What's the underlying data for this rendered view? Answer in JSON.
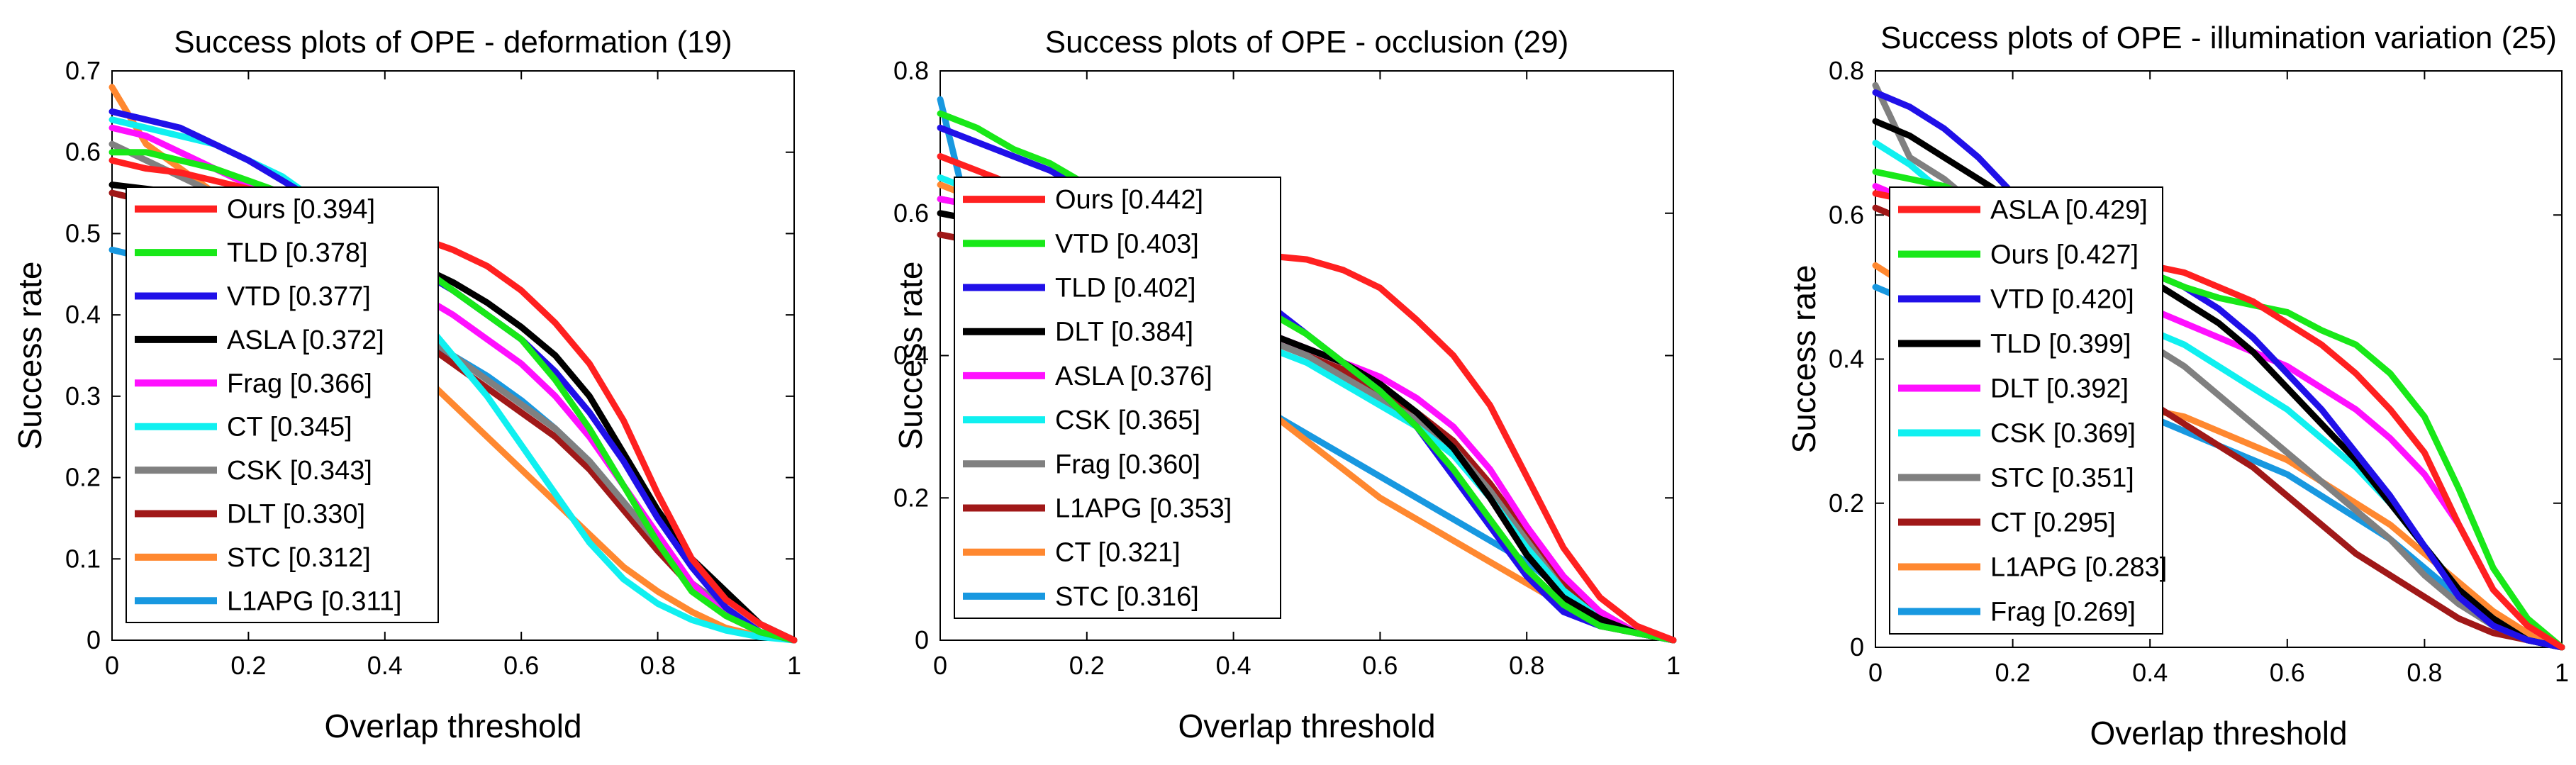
{
  "chart_data": [
    {
      "type": "line",
      "title": "Success plots of OPE - deformation (19)",
      "xlabel": "Overlap threshold",
      "ylabel": "Success rate",
      "xlim": [
        0,
        1
      ],
      "ylim": [
        0,
        0.7
      ],
      "xticks": [
        0,
        0.2,
        0.4,
        0.6,
        0.8,
        1
      ],
      "xtick_labels": [
        "0",
        "0.2",
        "0.4",
        "0.6",
        "0.8",
        "1"
      ],
      "yticks": [
        0,
        0.1,
        0.2,
        0.3,
        0.4,
        0.5,
        0.6,
        0.7
      ],
      "ytick_labels": [
        "0",
        "0.1",
        "0.2",
        "0.3",
        "0.4",
        "0.5",
        "0.6",
        "0.7"
      ],
      "legend": "inside-left",
      "x": [
        0,
        0.05,
        0.1,
        0.15,
        0.2,
        0.25,
        0.3,
        0.35,
        0.4,
        0.45,
        0.5,
        0.55,
        0.6,
        0.65,
        0.7,
        0.75,
        0.8,
        0.85,
        0.9,
        0.95,
        1
      ],
      "series": [
        {
          "name": "Ours [0.394]",
          "color": "#ff2020",
          "values": [
            0.59,
            0.58,
            0.575,
            0.565,
            0.555,
            0.545,
            0.53,
            0.515,
            0.5,
            0.495,
            0.48,
            0.46,
            0.43,
            0.39,
            0.34,
            0.27,
            0.18,
            0.1,
            0.05,
            0.02,
            0.0
          ]
        },
        {
          "name": "TLD [0.378]",
          "color": "#18e818",
          "values": [
            0.6,
            0.6,
            0.59,
            0.58,
            0.565,
            0.55,
            0.535,
            0.515,
            0.49,
            0.46,
            0.43,
            0.4,
            0.37,
            0.32,
            0.26,
            0.19,
            0.12,
            0.06,
            0.03,
            0.01,
            0.0
          ]
        },
        {
          "name": "VTD [0.377]",
          "color": "#2010e8",
          "values": [
            0.65,
            0.64,
            0.63,
            0.61,
            0.59,
            0.565,
            0.54,
            0.51,
            0.48,
            0.455,
            0.43,
            0.4,
            0.37,
            0.33,
            0.28,
            0.22,
            0.15,
            0.09,
            0.04,
            0.01,
            0.0
          ]
        },
        {
          "name": "ASLA [0.372]",
          "color": "#000000",
          "values": [
            0.56,
            0.555,
            0.55,
            0.54,
            0.53,
            0.52,
            0.505,
            0.49,
            0.475,
            0.46,
            0.44,
            0.415,
            0.385,
            0.35,
            0.3,
            0.23,
            0.16,
            0.1,
            0.06,
            0.02,
            0.0
          ]
        },
        {
          "name": "Frag [0.366]",
          "color": "#ff10ff",
          "values": [
            0.63,
            0.62,
            0.6,
            0.58,
            0.56,
            0.535,
            0.51,
            0.48,
            0.45,
            0.425,
            0.4,
            0.37,
            0.34,
            0.3,
            0.25,
            0.19,
            0.13,
            0.07,
            0.03,
            0.01,
            0.0
          ]
        },
        {
          "name": "CT [0.345]",
          "color": "#10f0f0",
          "values": [
            0.64,
            0.63,
            0.62,
            0.61,
            0.59,
            0.57,
            0.54,
            0.5,
            0.45,
            0.4,
            0.35,
            0.3,
            0.24,
            0.18,
            0.12,
            0.075,
            0.045,
            0.025,
            0.012,
            0.004,
            0.0
          ]
        },
        {
          "name": "CSK [0.343]",
          "color": "#808080",
          "values": [
            0.61,
            0.59,
            0.57,
            0.55,
            0.53,
            0.5,
            0.47,
            0.44,
            0.41,
            0.38,
            0.35,
            0.32,
            0.29,
            0.26,
            0.22,
            0.17,
            0.12,
            0.07,
            0.04,
            0.01,
            0.0
          ]
        },
        {
          "name": "DLT [0.330]",
          "color": "#a01818",
          "values": [
            0.55,
            0.54,
            0.53,
            0.515,
            0.5,
            0.48,
            0.46,
            0.43,
            0.4,
            0.37,
            0.34,
            0.31,
            0.28,
            0.25,
            0.21,
            0.16,
            0.11,
            0.065,
            0.035,
            0.01,
            0.0
          ]
        },
        {
          "name": "STC [0.312]",
          "color": "#ff8830",
          "values": [
            0.68,
            0.61,
            0.58,
            0.55,
            0.52,
            0.49,
            0.45,
            0.41,
            0.37,
            0.33,
            0.29,
            0.25,
            0.21,
            0.17,
            0.13,
            0.09,
            0.06,
            0.035,
            0.015,
            0.005,
            0.0
          ]
        },
        {
          "name": "L1APG [0.311]",
          "color": "#1898e0",
          "values": [
            0.48,
            0.47,
            0.465,
            0.455,
            0.445,
            0.435,
            0.42,
            0.405,
            0.39,
            0.37,
            0.35,
            0.325,
            0.295,
            0.26,
            0.22,
            0.17,
            0.12,
            0.07,
            0.035,
            0.01,
            0.0
          ]
        }
      ]
    },
    {
      "type": "line",
      "title": "Success plots of OPE - occlusion (29)",
      "xlabel": "Overlap threshold",
      "ylabel": "Success rate",
      "xlim": [
        0,
        1
      ],
      "ylim": [
        0,
        0.8
      ],
      "xticks": [
        0,
        0.2,
        0.4,
        0.6,
        0.8,
        1
      ],
      "xtick_labels": [
        "0",
        "0.2",
        "0.4",
        "0.6",
        "0.8",
        "1"
      ],
      "yticks": [
        0,
        0.2,
        0.4,
        0.6,
        0.8
      ],
      "ytick_labels": [
        "0",
        "0.2",
        "0.4",
        "0.6",
        "0.8"
      ],
      "legend": "inside-left",
      "x": [
        0,
        0.05,
        0.1,
        0.15,
        0.2,
        0.25,
        0.3,
        0.35,
        0.4,
        0.45,
        0.5,
        0.55,
        0.6,
        0.65,
        0.7,
        0.75,
        0.8,
        0.85,
        0.9,
        0.95,
        1
      ],
      "series": [
        {
          "name": "Ours [0.442]",
          "color": "#ff2020",
          "values": [
            0.68,
            0.66,
            0.64,
            0.62,
            0.61,
            0.59,
            0.575,
            0.56,
            0.55,
            0.54,
            0.535,
            0.52,
            0.495,
            0.45,
            0.4,
            0.33,
            0.23,
            0.13,
            0.06,
            0.02,
            0.0
          ]
        },
        {
          "name": "VTD [0.403]",
          "color": "#18e818",
          "values": [
            0.74,
            0.72,
            0.69,
            0.67,
            0.64,
            0.6,
            0.57,
            0.53,
            0.49,
            0.46,
            0.43,
            0.39,
            0.35,
            0.3,
            0.24,
            0.17,
            0.1,
            0.05,
            0.02,
            0.01,
            0.0
          ]
        },
        {
          "name": "TLD [0.402]",
          "color": "#2010e8",
          "values": [
            0.72,
            0.7,
            0.68,
            0.66,
            0.63,
            0.6,
            0.56,
            0.53,
            0.5,
            0.47,
            0.43,
            0.39,
            0.35,
            0.3,
            0.23,
            0.16,
            0.09,
            0.04,
            0.02,
            0.01,
            0.0
          ]
        },
        {
          "name": "DLT [0.384]",
          "color": "#000000",
          "values": [
            0.6,
            0.59,
            0.58,
            0.56,
            0.54,
            0.52,
            0.5,
            0.47,
            0.45,
            0.43,
            0.41,
            0.39,
            0.36,
            0.32,
            0.27,
            0.2,
            0.12,
            0.06,
            0.03,
            0.01,
            0.0
          ]
        },
        {
          "name": "ASLA [0.376]",
          "color": "#ff10ff",
          "values": [
            0.62,
            0.61,
            0.6,
            0.58,
            0.56,
            0.54,
            0.51,
            0.48,
            0.45,
            0.43,
            0.41,
            0.39,
            0.37,
            0.34,
            0.3,
            0.24,
            0.16,
            0.09,
            0.04,
            0.01,
            0.0
          ]
        },
        {
          "name": "CSK [0.365]",
          "color": "#10f0f0",
          "values": [
            0.65,
            0.63,
            0.61,
            0.59,
            0.56,
            0.53,
            0.5,
            0.47,
            0.44,
            0.41,
            0.39,
            0.36,
            0.33,
            0.3,
            0.26,
            0.2,
            0.13,
            0.07,
            0.03,
            0.01,
            0.0
          ]
        },
        {
          "name": "Frag [0.360]",
          "color": "#808080",
          "values": [
            0.62,
            0.61,
            0.6,
            0.58,
            0.56,
            0.53,
            0.5,
            0.47,
            0.44,
            0.42,
            0.4,
            0.37,
            0.34,
            0.31,
            0.27,
            0.21,
            0.14,
            0.07,
            0.03,
            0.01,
            0.0
          ]
        },
        {
          "name": "L1APG [0.353]",
          "color": "#a01818",
          "values": [
            0.57,
            0.56,
            0.55,
            0.54,
            0.52,
            0.5,
            0.48,
            0.46,
            0.44,
            0.42,
            0.4,
            0.38,
            0.35,
            0.32,
            0.28,
            0.22,
            0.15,
            0.08,
            0.04,
            0.01,
            0.0
          ]
        },
        {
          "name": "CT [0.321]",
          "color": "#ff8830",
          "values": [
            0.64,
            0.62,
            0.59,
            0.56,
            0.52,
            0.48,
            0.44,
            0.4,
            0.36,
            0.32,
            0.28,
            0.24,
            0.2,
            0.17,
            0.14,
            0.11,
            0.08,
            0.05,
            0.02,
            0.01,
            0.0
          ]
        },
        {
          "name": "STC [0.316]",
          "color": "#1898e0",
          "values": [
            0.76,
            0.55,
            0.53,
            0.5,
            0.47,
            0.44,
            0.41,
            0.38,
            0.35,
            0.32,
            0.29,
            0.26,
            0.23,
            0.2,
            0.17,
            0.14,
            0.11,
            0.07,
            0.04,
            0.01,
            0.0
          ]
        }
      ]
    },
    {
      "type": "line",
      "title": "Success plots of OPE - illumination variation (25)",
      "xlabel": "Overlap threshold",
      "ylabel": "Success rate",
      "xlim": [
        0,
        1
      ],
      "ylim": [
        0,
        0.8
      ],
      "xticks": [
        0,
        0.2,
        0.4,
        0.6,
        0.8,
        1
      ],
      "xtick_labels": [
        "0",
        "0.2",
        "0.4",
        "0.6",
        "0.8",
        "1"
      ],
      "yticks": [
        0,
        0.2,
        0.4,
        0.6,
        0.8
      ],
      "ytick_labels": [
        "0",
        "0.2",
        "0.4",
        "0.6",
        "0.8"
      ],
      "legend": "inside-left",
      "x": [
        0,
        0.05,
        0.1,
        0.15,
        0.2,
        0.25,
        0.3,
        0.35,
        0.4,
        0.45,
        0.5,
        0.55,
        0.6,
        0.65,
        0.7,
        0.75,
        0.8,
        0.85,
        0.9,
        0.95,
        1
      ],
      "series": [
        {
          "name": "ASLA [0.429]",
          "color": "#ff2020",
          "values": [
            0.63,
            0.62,
            0.61,
            0.6,
            0.58,
            0.57,
            0.555,
            0.54,
            0.53,
            0.52,
            0.5,
            0.48,
            0.45,
            0.42,
            0.38,
            0.33,
            0.27,
            0.17,
            0.08,
            0.03,
            0.0
          ]
        },
        {
          "name": "Ours [0.427]",
          "color": "#18e818",
          "values": [
            0.66,
            0.65,
            0.64,
            0.62,
            0.6,
            0.58,
            0.56,
            0.54,
            0.52,
            0.5,
            0.485,
            0.475,
            0.465,
            0.44,
            0.42,
            0.38,
            0.32,
            0.22,
            0.11,
            0.04,
            0.0
          ]
        },
        {
          "name": "VTD [0.420]",
          "color": "#2010e8",
          "values": [
            0.77,
            0.75,
            0.72,
            0.68,
            0.63,
            0.59,
            0.56,
            0.54,
            0.52,
            0.5,
            0.47,
            0.43,
            0.38,
            0.33,
            0.27,
            0.21,
            0.14,
            0.07,
            0.03,
            0.01,
            0.0
          ]
        },
        {
          "name": "TLD [0.399]",
          "color": "#000000",
          "values": [
            0.73,
            0.71,
            0.68,
            0.65,
            0.62,
            0.58,
            0.55,
            0.53,
            0.51,
            0.48,
            0.45,
            0.41,
            0.36,
            0.31,
            0.26,
            0.2,
            0.14,
            0.08,
            0.04,
            0.01,
            0.0
          ]
        },
        {
          "name": "DLT [0.392]",
          "color": "#ff10ff",
          "values": [
            0.64,
            0.62,
            0.6,
            0.58,
            0.55,
            0.53,
            0.51,
            0.49,
            0.47,
            0.45,
            0.43,
            0.41,
            0.39,
            0.36,
            0.33,
            0.29,
            0.24,
            0.17,
            0.08,
            0.03,
            0.0
          ]
        },
        {
          "name": "CSK [0.369]",
          "color": "#10f0f0",
          "values": [
            0.7,
            0.67,
            0.63,
            0.59,
            0.55,
            0.52,
            0.49,
            0.46,
            0.44,
            0.42,
            0.39,
            0.36,
            0.33,
            0.29,
            0.25,
            0.2,
            0.14,
            0.08,
            0.04,
            0.01,
            0.0
          ]
        },
        {
          "name": "STC [0.351]",
          "color": "#808080",
          "values": [
            0.78,
            0.68,
            0.65,
            0.61,
            0.57,
            0.53,
            0.49,
            0.45,
            0.42,
            0.39,
            0.35,
            0.31,
            0.27,
            0.23,
            0.19,
            0.15,
            0.1,
            0.06,
            0.03,
            0.01,
            0.0
          ]
        },
        {
          "name": "CT [0.295]",
          "color": "#a01818",
          "values": [
            0.61,
            0.59,
            0.56,
            0.52,
            0.48,
            0.44,
            0.4,
            0.37,
            0.34,
            0.31,
            0.28,
            0.25,
            0.21,
            0.17,
            0.13,
            0.1,
            0.07,
            0.04,
            0.02,
            0.01,
            0.0
          ]
        },
        {
          "name": "L1APG [0.283]",
          "color": "#ff8830",
          "values": [
            0.53,
            0.5,
            0.47,
            0.44,
            0.41,
            0.38,
            0.36,
            0.34,
            0.33,
            0.32,
            0.3,
            0.28,
            0.26,
            0.23,
            0.2,
            0.17,
            0.13,
            0.09,
            0.05,
            0.02,
            0.0
          ]
        },
        {
          "name": "Frag [0.269]",
          "color": "#1898e0",
          "values": [
            0.5,
            0.48,
            0.46,
            0.44,
            0.42,
            0.39,
            0.36,
            0.34,
            0.32,
            0.3,
            0.28,
            0.26,
            0.24,
            0.21,
            0.18,
            0.15,
            0.11,
            0.07,
            0.04,
            0.01,
            0.0
          ]
        }
      ]
    }
  ]
}
